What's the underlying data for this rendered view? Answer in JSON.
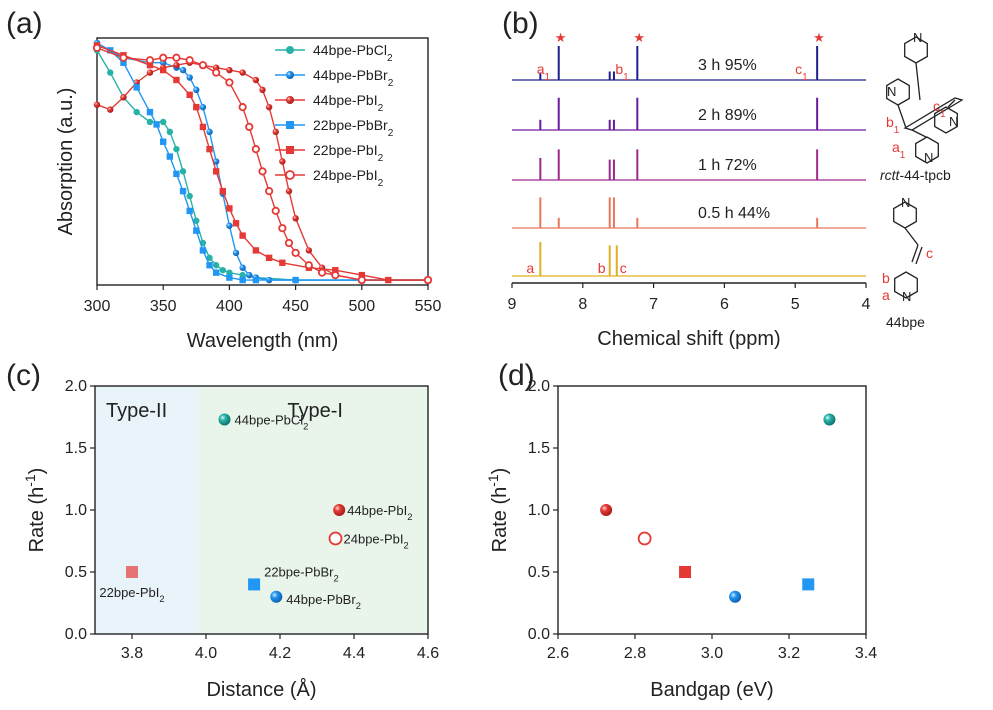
{
  "colors": {
    "teal": "#27b2a8",
    "blue": "#2196f3",
    "red": "#e53935",
    "nmr_spectra": [
      "#1e1e8c",
      "#6a1b9a",
      "#9c2a8c",
      "#e8785a",
      "#e0b020"
    ],
    "highlight": "#cfe6f5",
    "type2_bg": "#e9f3fa",
    "type1_bg": "#e9f5ea"
  },
  "panel_labels": [
    "(a)",
    "(b)",
    "(c)",
    "(d)"
  ],
  "chart_data": [
    {
      "panel": "(a)",
      "type": "line",
      "xlabel": "Wavelength (nm)",
      "ylabel": "Absorption (a.u.)",
      "xlim": [
        300,
        550
      ],
      "ylim": [
        0,
        1
      ],
      "xticks": [
        "300",
        "350",
        "400",
        "450",
        "500",
        "550"
      ],
      "legend_position": "top-right",
      "series": [
        {
          "name": "44bpe-PbCl2",
          "label": [
            "44bpe-PbCl",
            "2"
          ],
          "marker": "circle-filled",
          "color": "#27b2a8",
          "x": [
            300,
            310,
            320,
            330,
            340,
            350,
            355,
            360,
            365,
            370,
            375,
            380,
            385,
            390,
            395,
            400,
            410,
            420,
            450,
            500,
            550
          ],
          "y": [
            0.95,
            0.86,
            0.76,
            0.7,
            0.66,
            0.66,
            0.62,
            0.55,
            0.46,
            0.36,
            0.26,
            0.17,
            0.11,
            0.08,
            0.06,
            0.05,
            0.04,
            0.03,
            0.02,
            0.02,
            0.02
          ]
        },
        {
          "name": "44bpe-PbBr2",
          "label": [
            "44bpe-PbBr",
            "2"
          ],
          "marker": "sphere",
          "color": "#2196f3",
          "x": [
            300,
            320,
            340,
            350,
            360,
            365,
            370,
            375,
            380,
            385,
            390,
            395,
            400,
            405,
            410,
            415,
            420,
            430,
            450,
            500,
            550
          ],
          "y": [
            0.98,
            0.92,
            0.9,
            0.9,
            0.88,
            0.87,
            0.84,
            0.79,
            0.72,
            0.62,
            0.5,
            0.37,
            0.24,
            0.13,
            0.07,
            0.04,
            0.03,
            0.02,
            0.02,
            0.02,
            0.02
          ]
        },
        {
          "name": "44bpe-PbI2",
          "label": [
            "44bpe-PbI",
            "2"
          ],
          "marker": "sphere",
          "color": "#e53935",
          "x": [
            300,
            310,
            320,
            330,
            340,
            350,
            360,
            370,
            380,
            390,
            400,
            410,
            420,
            425,
            430,
            435,
            440,
            445,
            450,
            460,
            470,
            480,
            500,
            550
          ],
          "y": [
            0.73,
            0.71,
            0.76,
            0.82,
            0.86,
            0.88,
            0.89,
            0.9,
            0.89,
            0.88,
            0.87,
            0.86,
            0.83,
            0.79,
            0.72,
            0.62,
            0.5,
            0.38,
            0.27,
            0.14,
            0.07,
            0.04,
            0.02,
            0.02
          ]
        },
        {
          "name": "22bpe-PbBr2",
          "label": [
            "22bpe-PbBr",
            "2"
          ],
          "marker": "square-filled",
          "color": "#2196f3",
          "x": [
            300,
            310,
            320,
            330,
            340,
            345,
            350,
            355,
            360,
            365,
            370,
            375,
            380,
            385,
            390,
            400,
            410,
            420,
            450,
            500,
            550
          ],
          "y": [
            0.97,
            0.95,
            0.9,
            0.8,
            0.7,
            0.65,
            0.58,
            0.52,
            0.45,
            0.38,
            0.3,
            0.22,
            0.14,
            0.08,
            0.05,
            0.03,
            0.02,
            0.02,
            0.02,
            0.02,
            0.02
          ]
        },
        {
          "name": "22bpe-PbI2",
          "label": [
            "22bpe-PbI",
            "2"
          ],
          "marker": "square-filled",
          "color": "#e53935",
          "x": [
            300,
            320,
            340,
            350,
            360,
            370,
            375,
            380,
            385,
            390,
            395,
            400,
            405,
            410,
            420,
            430,
            440,
            460,
            480,
            500,
            520,
            550
          ],
          "y": [
            0.97,
            0.93,
            0.89,
            0.87,
            0.83,
            0.77,
            0.72,
            0.64,
            0.55,
            0.46,
            0.38,
            0.31,
            0.25,
            0.2,
            0.14,
            0.11,
            0.09,
            0.07,
            0.06,
            0.04,
            0.02,
            0.02
          ]
        },
        {
          "name": "24bpe-PbI2",
          "label": [
            "24bpe-PbI",
            "2"
          ],
          "marker": "circle-open",
          "color": "#e53935",
          "x": [
            300,
            320,
            340,
            350,
            360,
            370,
            380,
            390,
            400,
            410,
            415,
            420,
            425,
            430,
            435,
            440,
            445,
            450,
            460,
            470,
            480,
            500,
            550
          ],
          "y": [
            0.96,
            0.92,
            0.91,
            0.92,
            0.92,
            0.91,
            0.89,
            0.86,
            0.82,
            0.72,
            0.64,
            0.55,
            0.46,
            0.38,
            0.3,
            0.23,
            0.17,
            0.13,
            0.08,
            0.05,
            0.04,
            0.02,
            0.02
          ]
        }
      ]
    },
    {
      "panel": "(b)",
      "type": "line",
      "xlabel": "Chemical shift (ppm)",
      "xlim": [
        9,
        4
      ],
      "xticks": [
        "9",
        "8",
        "7",
        "6",
        "5",
        "4"
      ],
      "highlight_bands": [
        [
          8.33,
          8.47
        ],
        [
          7.14,
          7.3
        ],
        [
          4.56,
          4.78
        ]
      ],
      "series": [
        {
          "name": "3 h 95%",
          "peaks": [
            [
              8.6,
              0.22
            ],
            [
              8.34,
              1.0
            ],
            [
              7.62,
              0.25
            ],
            [
              7.56,
              0.25
            ],
            [
              7.23,
              1.0
            ],
            [
              4.69,
              1.0
            ]
          ]
        },
        {
          "name": "2 h 89%",
          "peaks": [
            [
              8.6,
              0.3
            ],
            [
              8.34,
              0.95
            ],
            [
              7.62,
              0.3
            ],
            [
              7.56,
              0.3
            ],
            [
              7.23,
              0.95
            ],
            [
              4.69,
              0.95
            ]
          ]
        },
        {
          "name": "1 h 72%",
          "peaks": [
            [
              8.6,
              0.65
            ],
            [
              8.34,
              0.9
            ],
            [
              7.62,
              0.6
            ],
            [
              7.56,
              0.6
            ],
            [
              7.23,
              0.9
            ],
            [
              4.69,
              0.9
            ]
          ]
        },
        {
          "name": "0.5 h 44%",
          "peaks": [
            [
              8.6,
              0.9
            ],
            [
              8.34,
              0.3
            ],
            [
              7.62,
              0.9
            ],
            [
              7.56,
              0.9
            ],
            [
              7.23,
              0.3
            ],
            [
              4.69,
              0.3
            ]
          ]
        },
        {
          "name": "44bpe",
          "peaks": [
            [
              8.6,
              1.0
            ],
            [
              7.62,
              0.9
            ],
            [
              7.52,
              0.9
            ]
          ]
        }
      ],
      "spectrum_labels": [
        "3 h 95%",
        "2 h 89%",
        "1 h 72%",
        "0.5 h 44%"
      ],
      "peak_labels_product": [
        {
          "base": "a",
          "sub": "1"
        },
        {
          "base": "b",
          "sub": "1"
        },
        {
          "base": "c",
          "sub": "1"
        }
      ],
      "peak_labels_monomer": [
        "a",
        "b",
        "c"
      ],
      "star": "★",
      "structure_product": {
        "name_italic": "rctt",
        "name_rest": "-44-tpcb",
        "labels": [
          {
            "base": "c",
            "sub": "1"
          },
          {
            "base": "b",
            "sub": "1"
          },
          {
            "base": "a",
            "sub": "1"
          }
        ]
      },
      "structure_monomer": {
        "name": "44bpe",
        "labels": [
          "c",
          "b",
          "a"
        ]
      },
      "nitrogen": "N"
    },
    {
      "panel": "(c)",
      "type": "scatter",
      "xlabel": "Distance (Å)",
      "ylabel": "Rate (h",
      "ylabel_sup": "-1",
      "ylabel_end": ")",
      "xlim": [
        3.7,
        4.6
      ],
      "ylim": [
        0,
        2
      ],
      "xticks": [
        "3.8",
        "4.0",
        "4.2",
        "4.4",
        "4.6"
      ],
      "yticks": [
        "0.0",
        "0.5",
        "1.0",
        "1.5",
        "2.0"
      ],
      "regions": [
        {
          "label": "Type-II",
          "range": [
            3.7,
            3.98
          ]
        },
        {
          "label": "Type-I",
          "range": [
            3.98,
            4.6
          ]
        }
      ],
      "points": [
        {
          "name": "44bpe-PbCl2",
          "label": [
            "44bpe-PbCl",
            "2"
          ],
          "x": 4.05,
          "y": 1.73,
          "marker": "sphere",
          "color": "#27b2a8"
        },
        {
          "name": "44bpe-PbI2",
          "label": [
            "44bpe-PbI",
            "2"
          ],
          "x": 4.36,
          "y": 1.0,
          "marker": "sphere",
          "color": "#e53935"
        },
        {
          "name": "24bpe-PbI2",
          "label": [
            "24bpe-PbI",
            "2"
          ],
          "x": 4.35,
          "y": 0.77,
          "marker": "circle-open",
          "color": "#e53935"
        },
        {
          "name": "22bpe-PbI2",
          "label": [
            "22bpe-PbI",
            "2"
          ],
          "x": 3.8,
          "y": 0.5,
          "marker": "square",
          "color": "#e57373"
        },
        {
          "name": "22bpe-PbBr2",
          "label": [
            "22bpe-PbBr",
            "2"
          ],
          "x": 4.13,
          "y": 0.4,
          "marker": "square",
          "color": "#2196f3"
        },
        {
          "name": "44bpe-PbBr2",
          "label": [
            "44bpe-PbBr",
            "2"
          ],
          "x": 4.19,
          "y": 0.3,
          "marker": "sphere",
          "color": "#2196f3"
        }
      ]
    },
    {
      "panel": "(d)",
      "type": "scatter",
      "xlabel": "Bandgap (eV)",
      "ylabel": "Rate (h",
      "ylabel_sup": "-1",
      "ylabel_end": ")",
      "xlim": [
        2.6,
        3.4
      ],
      "ylim": [
        0,
        2
      ],
      "xticks": [
        "2.6",
        "2.8",
        "3.0",
        "3.2",
        "3.4"
      ],
      "yticks": [
        "0.0",
        "0.5",
        "1.0",
        "1.5",
        "2.0"
      ],
      "points": [
        {
          "x": 2.725,
          "y": 1.0,
          "marker": "sphere",
          "color": "#e53935"
        },
        {
          "x": 2.825,
          "y": 0.77,
          "marker": "circle-open",
          "color": "#e53935"
        },
        {
          "x": 2.93,
          "y": 0.5,
          "marker": "square",
          "color": "#e53935"
        },
        {
          "x": 3.06,
          "y": 0.3,
          "marker": "sphere",
          "color": "#2196f3"
        },
        {
          "x": 3.25,
          "y": 0.4,
          "marker": "square",
          "color": "#2196f3"
        },
        {
          "x": 3.305,
          "y": 1.73,
          "marker": "sphere",
          "color": "#27b2a8"
        }
      ]
    }
  ]
}
